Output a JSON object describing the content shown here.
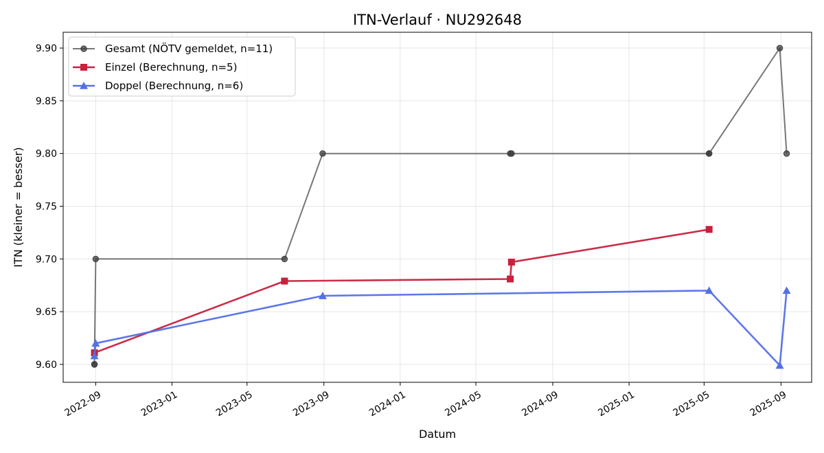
{
  "chart_data": {
    "type": "line",
    "title": "ITN-Verlauf · NU292648",
    "xlabel": "Datum",
    "ylabel": "ITN  (kleiner = besser)",
    "xlim": [
      "2022-07-11",
      "2025-10-20"
    ],
    "ylim": [
      9.583,
      9.915
    ],
    "x_ticks": [
      "2022-09-01",
      "2023-01-01",
      "2023-05-01",
      "2023-09-01",
      "2024-01-01",
      "2024-05-01",
      "2024-09-01",
      "2025-01-01",
      "2025-05-01",
      "2025-09-01"
    ],
    "x_tick_labels": [
      "2022-09",
      "2023-01",
      "2023-05",
      "2023-09",
      "2024-01",
      "2024-05",
      "2024-09",
      "2025-01",
      "2025-05",
      "2025-09"
    ],
    "y_ticks": [
      9.6,
      9.65,
      9.7,
      9.75,
      9.8,
      9.85,
      9.9
    ],
    "y_tick_labels": [
      "9.60",
      "9.65",
      "9.70",
      "9.75",
      "9.80",
      "9.85",
      "9.90"
    ],
    "grid": true,
    "legend_position": "top-left",
    "series": [
      {
        "name": "Gesamt (NÖTV gemeldet, n=11)",
        "color": "#767676",
        "marker": "circle",
        "x": [
          "2022-08-30",
          "2022-08-30",
          "2022-09-01",
          "2023-06-30",
          "2023-08-30",
          "2024-06-25",
          "2024-06-27",
          "2025-05-09",
          "2025-05-09",
          "2025-08-30",
          "2025-09-10"
        ],
        "y": [
          9.6,
          9.6,
          9.7,
          9.7,
          9.8,
          9.8,
          9.8,
          9.8,
          9.8,
          9.9,
          9.8
        ]
      },
      {
        "name": "Einzel (Berechnung, n=5)",
        "color": "#c8203d",
        "marker": "square",
        "x": [
          "2022-08-30",
          "2023-06-30",
          "2024-06-25",
          "2024-06-27",
          "2025-05-09"
        ],
        "y": [
          9.611,
          9.679,
          9.681,
          9.697,
          9.728
        ]
      },
      {
        "name": "Doppel (Berechnung, n=6)",
        "color": "#5470e6",
        "marker": "triangle",
        "x": [
          "2022-08-30",
          "2022-09-01",
          "2023-08-30",
          "2025-05-09",
          "2025-08-30",
          "2025-09-10"
        ],
        "y": [
          9.608,
          9.62,
          9.665,
          9.67,
          9.599,
          9.67
        ]
      }
    ]
  }
}
